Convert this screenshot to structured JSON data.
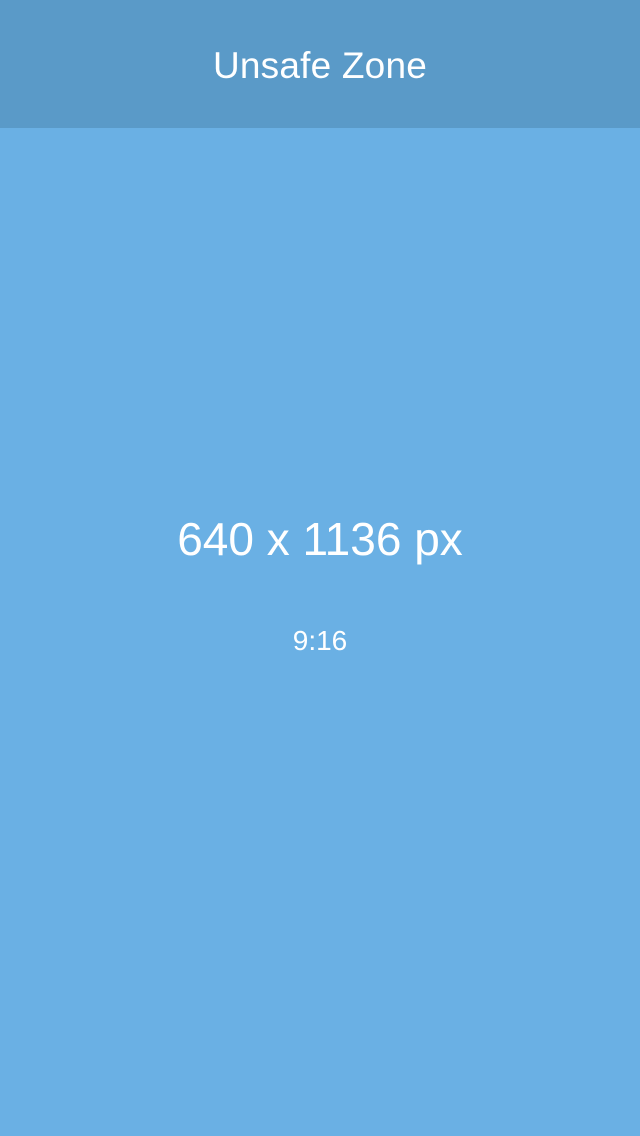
{
  "header": {
    "title": "Unsafe Zone"
  },
  "placeholder": {
    "dimensions": "640 x 1136 px",
    "ratio": "9:16"
  },
  "colors": {
    "header_background": "#5a9ac8",
    "body_background": "#6ab0e4",
    "text": "#ffffff"
  }
}
